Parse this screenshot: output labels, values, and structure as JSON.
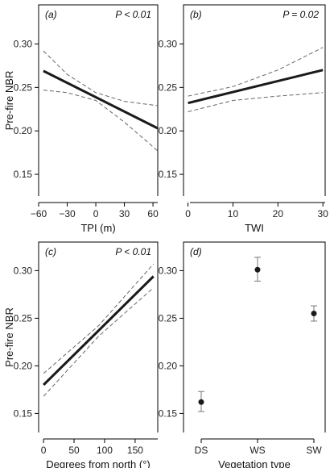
{
  "chart_data": [
    {
      "panel": "(a)",
      "type": "line",
      "pvalue": "P < 0.01",
      "ylabel": "Pre-fire NBR",
      "xlabel": "TPI (m)",
      "xlim": [
        -60,
        65
      ],
      "ylim": [
        0.125,
        0.345
      ],
      "xticks": [
        -60,
        -30,
        0,
        30,
        60
      ],
      "xtick_labels": [
        "−60",
        "−30",
        "0",
        "30",
        "60"
      ],
      "yticks": [
        0.15,
        0.2,
        0.25,
        0.3
      ],
      "ytick_labels": [
        "0.15",
        "0.20",
        "0.25",
        "0.30"
      ],
      "series": [
        {
          "role": "fit",
          "x": [
            -55,
            65
          ],
          "y": [
            0.269,
            0.203
          ]
        },
        {
          "role": "upper",
          "x": [
            -55,
            -30,
            0,
            30,
            65
          ],
          "y": [
            0.292,
            0.265,
            0.244,
            0.234,
            0.229
          ]
        },
        {
          "role": "lower",
          "x": [
            -55,
            -30,
            0,
            30,
            65
          ],
          "y": [
            0.247,
            0.244,
            0.235,
            0.21,
            0.177
          ]
        }
      ]
    },
    {
      "panel": "(b)",
      "type": "line",
      "pvalue": "P = 0.02",
      "ylabel": "",
      "xlabel": "TWI",
      "xlim": [
        -1,
        30.5
      ],
      "ylim": [
        0.125,
        0.345
      ],
      "xticks": [
        0,
        10,
        20,
        30
      ],
      "xtick_labels": [
        "0",
        "10",
        "20",
        "30"
      ],
      "yticks": [
        0.15,
        0.2,
        0.25,
        0.3
      ],
      "ytick_labels": [
        "0.15",
        "0.20",
        "0.25",
        "0.30"
      ],
      "series": [
        {
          "role": "fit",
          "x": [
            0,
            30
          ],
          "y": [
            0.232,
            0.27
          ]
        },
        {
          "role": "upper",
          "x": [
            0,
            10,
            20,
            30
          ],
          "y": [
            0.24,
            0.251,
            0.27,
            0.296
          ]
        },
        {
          "role": "lower",
          "x": [
            0,
            10,
            20,
            30
          ],
          "y": [
            0.222,
            0.235,
            0.24,
            0.244
          ]
        }
      ]
    },
    {
      "panel": "(c)",
      "type": "line",
      "pvalue": "P < 0.01",
      "ylabel": "Pre-fire NBR",
      "xlabel": "Degrees from north (°)",
      "xlim": [
        -8,
        187
      ],
      "ylim": [
        0.13,
        0.33
      ],
      "xticks": [
        0,
        50,
        100,
        150
      ],
      "xtick_labels": [
        "0",
        "50",
        "100",
        "150"
      ],
      "yticks": [
        0.15,
        0.2,
        0.25,
        0.3
      ],
      "ytick_labels": [
        "0.15",
        "0.20",
        "0.25",
        "0.30"
      ],
      "series": [
        {
          "role": "fit",
          "x": [
            0,
            180
          ],
          "y": [
            0.18,
            0.294
          ]
        },
        {
          "role": "upper",
          "x": [
            0,
            90,
            180
          ],
          "y": [
            0.192,
            0.242,
            0.307
          ]
        },
        {
          "role": "lower",
          "x": [
            0,
            90,
            180
          ],
          "y": [
            0.168,
            0.231,
            0.282
          ]
        }
      ]
    },
    {
      "panel": "(d)",
      "type": "scatter",
      "pvalue": "",
      "ylabel": "",
      "xlabel": "Vegetation type",
      "categories": [
        "DS",
        "WS",
        "SW"
      ],
      "ylim": [
        0.13,
        0.33
      ],
      "yticks": [
        0.15,
        0.2,
        0.25,
        0.3
      ],
      "ytick_labels": [
        "0.15",
        "0.20",
        "0.25",
        "0.30"
      ],
      "values": [
        0.162,
        0.301,
        0.255
      ],
      "err_low": [
        0.152,
        0.289,
        0.247
      ],
      "err_high": [
        0.173,
        0.314,
        0.263
      ]
    }
  ]
}
